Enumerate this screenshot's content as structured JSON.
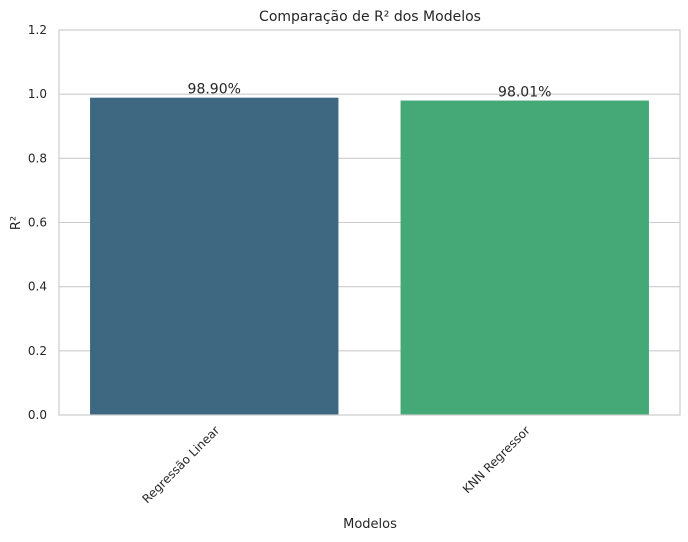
{
  "chart_data": {
    "type": "bar",
    "title": "Comparação de R² dos Modelos",
    "xlabel": "Modelos",
    "ylabel": "R²",
    "categories": [
      "Regressão Linear",
      "KNN Regressor"
    ],
    "values": [
      0.989,
      0.9801
    ],
    "value_labels": [
      "98.90%",
      "98.01%"
    ],
    "colors": [
      "#3e6782",
      "#45a877"
    ],
    "ylim": [
      0,
      1.2
    ],
    "yticks": [
      "0.0",
      "0.2",
      "0.4",
      "0.6",
      "0.8",
      "1.0",
      "1.2"
    ],
    "grid": true,
    "legend": "none"
  }
}
